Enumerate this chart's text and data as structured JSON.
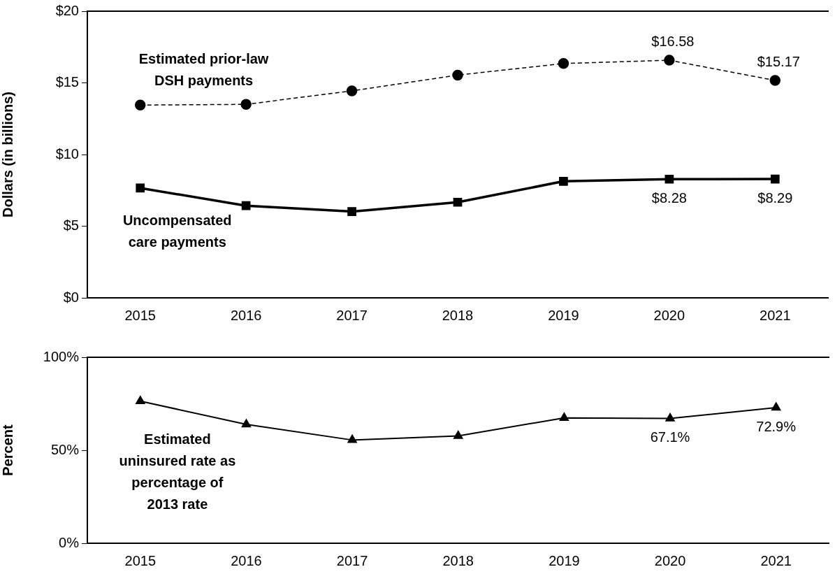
{
  "chart_data": [
    {
      "type": "line",
      "categories": [
        "2015",
        "2016",
        "2017",
        "2018",
        "2019",
        "2020",
        "2021"
      ],
      "ylabel": "Dollars (in billions)",
      "ylim": [
        0,
        20
      ],
      "yticks": [
        {
          "value": 0,
          "label": "$0"
        },
        {
          "value": 5,
          "label": "$5"
        },
        {
          "value": 10,
          "label": "$10"
        },
        {
          "value": 15,
          "label": "$15"
        },
        {
          "value": 20,
          "label": "$20"
        }
      ],
      "grid": false,
      "legend": false,
      "series": [
        {
          "name": "Estimated prior-law\nDSH payments",
          "color": "#000000",
          "marker": "circle",
          "line_style": "dashed",
          "values": [
            13.45,
            13.5,
            14.44,
            15.54,
            16.35,
            16.58,
            15.17
          ],
          "value_labels": [
            null,
            null,
            null,
            null,
            null,
            "$16.58",
            "$15.17"
          ]
        },
        {
          "name": "Uncompensated\ncare payments",
          "color": "#000000",
          "marker": "square",
          "line_style": "solid",
          "values": [
            7.66,
            6.43,
            6.02,
            6.67,
            8.13,
            8.28,
            8.29
          ],
          "value_labels": [
            null,
            null,
            null,
            null,
            null,
            "$8.28",
            "$8.29"
          ]
        }
      ]
    },
    {
      "type": "line",
      "categories": [
        "2015",
        "2016",
        "2017",
        "2018",
        "2019",
        "2020",
        "2021"
      ],
      "ylabel": "Percent",
      "ylim": [
        0,
        100
      ],
      "yticks": [
        {
          "value": 0,
          "label": "0%"
        },
        {
          "value": 50,
          "label": "50%"
        },
        {
          "value": 100,
          "label": "100%"
        }
      ],
      "grid": false,
      "legend": false,
      "series": [
        {
          "name": "Estimated\nuninsured rate as\npercentage of\n2013 rate",
          "color": "#000000",
          "marker": "triangle",
          "line_style": "solid",
          "values": [
            76.4,
            63.9,
            55.5,
            57.7,
            67.4,
            67.1,
            72.9
          ],
          "value_labels": [
            null,
            null,
            null,
            null,
            null,
            "67.1%",
            "72.9%"
          ]
        }
      ]
    }
  ]
}
